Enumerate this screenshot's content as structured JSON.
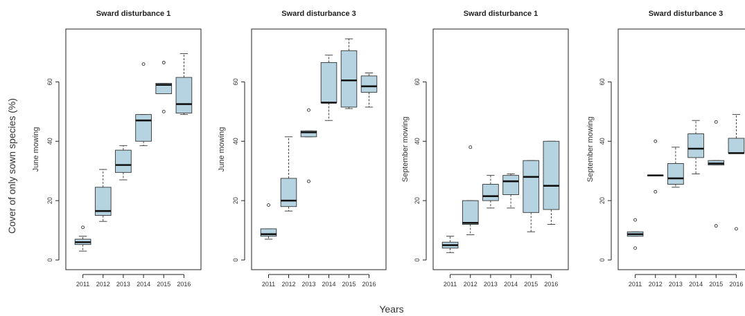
{
  "figure": {
    "y_label": "Cover of only sown species (%)",
    "x_label": "Years"
  },
  "chart_data": [
    {
      "type": "box",
      "title": "Sward disturbance 1",
      "ylabel": "June mowing",
      "xlabel": "",
      "ylim": [
        0,
        75
      ],
      "yticks": [
        0,
        20,
        40,
        60
      ],
      "categories": [
        "2011",
        "2012",
        "2013",
        "2014",
        "2015",
        "2016"
      ],
      "boxes": [
        {
          "low": 3,
          "q1": 5.2,
          "median": 6,
          "q3": 7,
          "high": 8,
          "outliers": [
            11
          ]
        },
        {
          "low": 13,
          "q1": 15,
          "median": 16.5,
          "q3": 24.5,
          "high": 30.5,
          "outliers": []
        },
        {
          "low": 27,
          "q1": 29.5,
          "median": 32,
          "q3": 37,
          "high": 38.5,
          "outliers": []
        },
        {
          "low": 38.5,
          "q1": 40,
          "median": 47,
          "q3": 49,
          "high": 49,
          "outliers": [
            66
          ]
        },
        {
          "low": 56,
          "q1": 56,
          "median": 59,
          "q3": 59.5,
          "high": 59.5,
          "outliers": [
            66.5,
            50
          ]
        },
        {
          "low": 49,
          "q1": 49.5,
          "median": 52.5,
          "q3": 61.5,
          "high": 69.5,
          "outliers": []
        }
      ]
    },
    {
      "type": "box",
      "title": "Sward disturbance 3",
      "ylabel": "June mowing",
      "xlabel": "",
      "ylim": [
        0,
        75
      ],
      "yticks": [
        0,
        20,
        40,
        60
      ],
      "categories": [
        "2011",
        "2012",
        "2013",
        "2014",
        "2015",
        "2016"
      ],
      "boxes": [
        {
          "low": 7,
          "q1": 8,
          "median": 8.7,
          "q3": 10.5,
          "high": 10.5,
          "outliers": [
            18.5
          ]
        },
        {
          "low": 16.5,
          "q1": 18,
          "median": 20,
          "q3": 27.5,
          "high": 41.5,
          "outliers": []
        },
        {
          "low": 41.5,
          "q1": 41.5,
          "median": 43,
          "q3": 43.5,
          "high": 43.5,
          "outliers": [
            50.5,
            26.5
          ]
        },
        {
          "low": 47,
          "q1": 53,
          "median": 53,
          "q3": 66.5,
          "high": 69,
          "outliers": []
        },
        {
          "low": 51,
          "q1": 51.5,
          "median": 60.5,
          "q3": 70.5,
          "high": 74.5,
          "outliers": []
        },
        {
          "low": 51.5,
          "q1": 56.5,
          "median": 58.5,
          "q3": 62,
          "high": 63,
          "outliers": []
        }
      ]
    },
    {
      "type": "box",
      "title": "Sward disturbance 1",
      "ylabel": "September mowing",
      "xlabel": "",
      "ylim": [
        0,
        75
      ],
      "yticks": [
        0,
        20,
        40,
        60
      ],
      "categories": [
        "2011",
        "2012",
        "2013",
        "2014",
        "2015",
        "2016"
      ],
      "boxes": [
        {
          "low": 2.5,
          "q1": 4,
          "median": 5,
          "q3": 6,
          "high": 8,
          "outliers": []
        },
        {
          "low": 8.5,
          "q1": 12,
          "median": 12.5,
          "q3": 20,
          "high": 20,
          "outliers": [
            38
          ]
        },
        {
          "low": 17.5,
          "q1": 20,
          "median": 21.5,
          "q3": 25.5,
          "high": 28.5,
          "outliers": []
        },
        {
          "low": 17.5,
          "q1": 22,
          "median": 26.5,
          "q3": 28.5,
          "high": 29,
          "outliers": []
        },
        {
          "low": 9.5,
          "q1": 16,
          "median": 28,
          "q3": 33.5,
          "high": 33.5,
          "outliers": []
        },
        {
          "low": 12,
          "q1": 17,
          "median": 25,
          "q3": 40,
          "high": 40,
          "outliers": []
        }
      ]
    },
    {
      "type": "box",
      "title": "Sward disturbance 3",
      "ylabel": "September mowing",
      "xlabel": "",
      "ylim": [
        0,
        75
      ],
      "yticks": [
        0,
        20,
        40,
        60
      ],
      "categories": [
        "2011",
        "2012",
        "2013",
        "2014",
        "2015",
        "2016"
      ],
      "boxes": [
        {
          "low": 8,
          "q1": 8,
          "median": 8.7,
          "q3": 9.5,
          "high": 9.5,
          "outliers": [
            13.5,
            4
          ]
        },
        {
          "low": 28.5,
          "q1": 28.5,
          "median": 28.5,
          "q3": 28.5,
          "high": 28.5,
          "outliers": [
            40,
            23
          ]
        },
        {
          "low": 24.5,
          "q1": 25.5,
          "median": 27.5,
          "q3": 32.5,
          "high": 38,
          "outliers": []
        },
        {
          "low": 29,
          "q1": 34.5,
          "median": 37.5,
          "q3": 42.5,
          "high": 47,
          "outliers": []
        },
        {
          "low": 32,
          "q1": 32,
          "median": 32.5,
          "q3": 33.5,
          "high": 33.5,
          "outliers": [
            46.5,
            11.5
          ]
        },
        {
          "low": 36,
          "q1": 36,
          "median": 36,
          "q3": 41,
          "high": 49,
          "outliers": [
            10.5
          ]
        }
      ]
    }
  ]
}
